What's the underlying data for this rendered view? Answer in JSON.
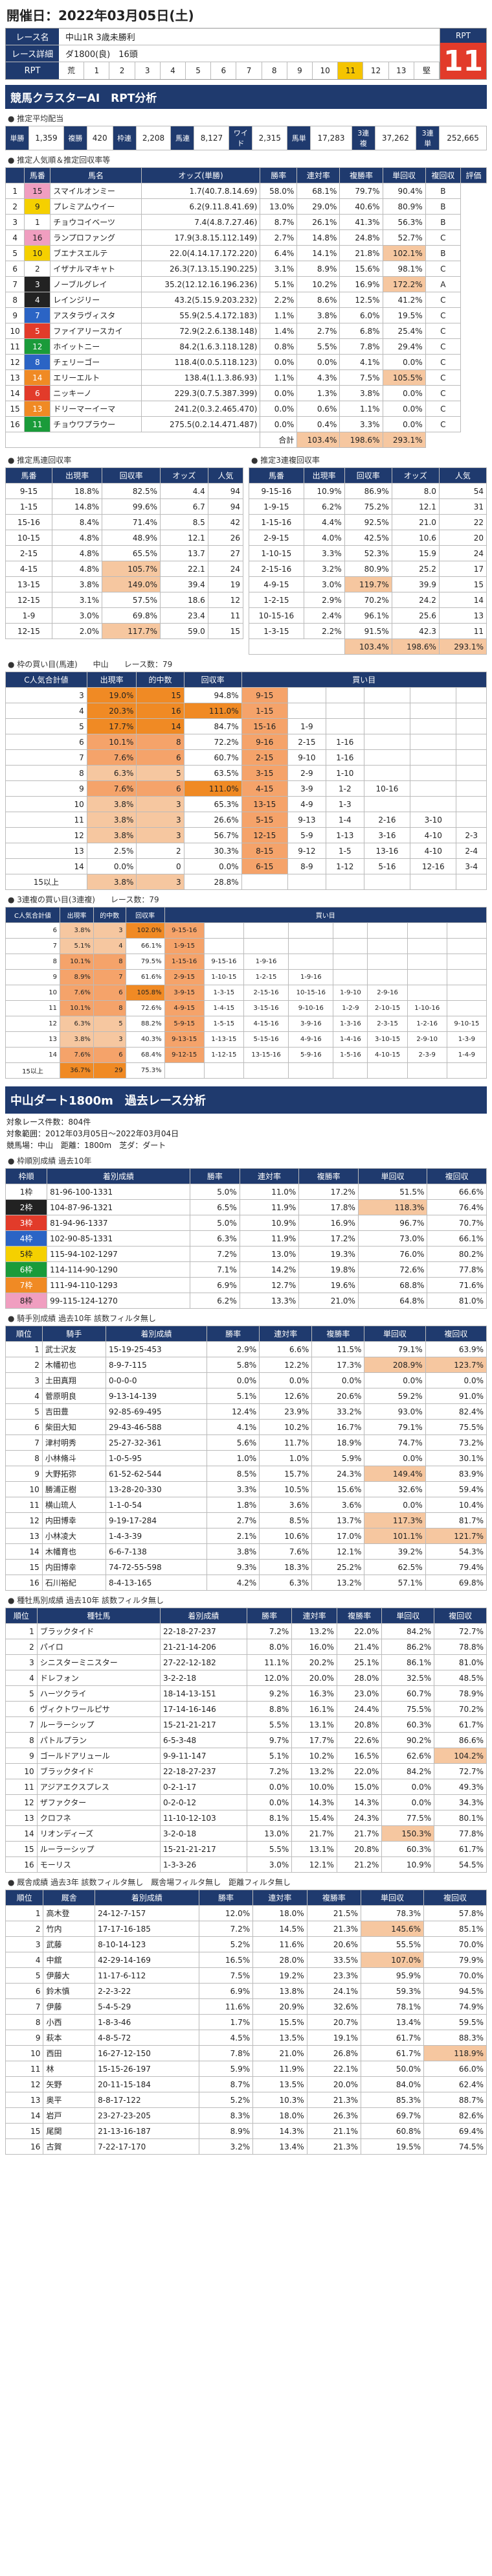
{
  "date": "開催日：2022年03月05日(土)",
  "race": {
    "name_label": "レース名",
    "name": "中山1R 3歳未勝利",
    "detail_label": "レース詳細",
    "detail": "ダ1800(良)　16頭",
    "rpt_label": "RPT",
    "rpt_head": "RPT",
    "rpt_value": "11",
    "rpt_cells": [
      "荒",
      "1",
      "2",
      "3",
      "4",
      "5",
      "6",
      "7",
      "8",
      "9",
      "10",
      "11",
      "12",
      "13",
      "堅"
    ]
  },
  "pay": {
    "labels": [
      "単勝",
      "複勝",
      "枠連",
      "馬連",
      "ワイド",
      "馬単",
      "3連複",
      "3連単"
    ],
    "values": [
      "1,359",
      "420",
      "2,208",
      "8,127",
      "2,315",
      "17,283",
      "37,262",
      "252,665"
    ]
  },
  "band1": "競馬クラスターAI　RPT分析",
  "sub_avg": "● 推定平均配当",
  "sub_pop": "● 推定人気順＆推定回収率等",
  "pop_head": [
    "馬番",
    "馬名",
    "オッズ(単勝)",
    "勝率",
    "連対率",
    "複勝率",
    "単回収",
    "複回収",
    "評価"
  ],
  "pop": [
    [
      "1",
      "15",
      "スマイルオンミー",
      "1.7(40.7.8.14.69)",
      "58.0%",
      "68.1%",
      "79.7%",
      "90.4%",
      "B"
    ],
    [
      "2",
      "9",
      "プレミアムウイー",
      "6.2(9.11.8.41.69)",
      "13.0%",
      "29.0%",
      "40.6%",
      "80.9%",
      "B"
    ],
    [
      "3",
      "1",
      "チョウコイベーツ",
      "7.4(4.8.7.27.46)",
      "8.7%",
      "26.1%",
      "41.3%",
      "56.3%",
      "B"
    ],
    [
      "4",
      "16",
      "ランプロファング",
      "17.9(3.8.15.112.149)",
      "2.7%",
      "14.8%",
      "24.8%",
      "52.7%",
      "C"
    ],
    [
      "5",
      "10",
      "ブエナスエルテ",
      "22.0(4.14.17.172.220)",
      "6.4%",
      "14.1%",
      "21.8%",
      "102.1%",
      "B"
    ],
    [
      "6",
      "2",
      "イザナルマキャト",
      "26.3(7.13.15.190.225)",
      "3.1%",
      "8.9%",
      "15.6%",
      "98.1%",
      "C"
    ],
    [
      "7",
      "3",
      "ノーブルグレイ",
      "35.2(12.12.16.196.236)",
      "5.1%",
      "10.2%",
      "16.9%",
      "172.2%",
      "A"
    ],
    [
      "8",
      "4",
      "レインジリー",
      "43.2(5.15.9.203.232)",
      "2.2%",
      "8.6%",
      "12.5%",
      "41.2%",
      "C"
    ],
    [
      "9",
      "7",
      "アスタラヴィスタ",
      "55.9(2.5.4.172.183)",
      "1.1%",
      "3.8%",
      "6.0%",
      "19.5%",
      "C"
    ],
    [
      "10",
      "5",
      "ファイアリースカイ",
      "72.9(2.2.6.138.148)",
      "1.4%",
      "2.7%",
      "6.8%",
      "25.4%",
      "C"
    ],
    [
      "11",
      "12",
      "ホイットニー",
      "84.2(1.6.3.118.128)",
      "0.8%",
      "5.5%",
      "7.8%",
      "29.4%",
      "C"
    ],
    [
      "12",
      "8",
      "チェリーゴー",
      "118.4(0.0.5.118.123)",
      "0.0%",
      "0.0%",
      "4.1%",
      "0.0%",
      "C"
    ],
    [
      "13",
      "14",
      "エリーエルト",
      "138.4(1.1.3.86.93)",
      "1.1%",
      "4.3%",
      "7.5%",
      "105.5%",
      "C"
    ],
    [
      "14",
      "6",
      "ニッキーノ",
      "229.3(0.7.5.387.399)",
      "0.0%",
      "1.3%",
      "3.8%",
      "0.0%",
      "C"
    ],
    [
      "15",
      "13",
      "ドリーマーイーマ",
      "241.2(0.3.2.465.470)",
      "0.0%",
      "0.6%",
      "1.1%",
      "0.0%",
      "C"
    ],
    [
      "16",
      "11",
      "チョウワプラウー",
      "275.5(0.2.14.471.487)",
      "0.0%",
      "0.4%",
      "3.3%",
      "0.0%",
      "C"
    ]
  ],
  "pop_total": [
    "合計",
    "103.4%",
    "198.6%",
    "293.1%"
  ],
  "sub_umaren": "● 推定馬連回収率",
  "sub_3ren": "● 推定3連複回収率",
  "umaren_head": [
    "馬番",
    "出現率",
    "回収率",
    "オッズ",
    "人気"
  ],
  "umaren": [
    [
      "9-15",
      "18.8%",
      "82.5%",
      "4.4",
      "94"
    ],
    [
      "1-15",
      "14.8%",
      "99.6%",
      "6.7",
      "94"
    ],
    [
      "15-16",
      "8.4%",
      "71.4%",
      "8.5",
      "42"
    ],
    [
      "10-15",
      "4.8%",
      "48.9%",
      "12.1",
      "26"
    ],
    [
      "2-15",
      "4.8%",
      "65.5%",
      "13.7",
      "27"
    ],
    [
      "4-15",
      "4.8%",
      "105.7%",
      "22.1",
      "24"
    ],
    [
      "13-15",
      "3.8%",
      "149.0%",
      "39.4",
      "19"
    ],
    [
      "12-15",
      "3.1%",
      "57.5%",
      "18.6",
      "12"
    ],
    [
      "1-9",
      "3.0%",
      "69.8%",
      "23.4",
      "11"
    ],
    [
      "12-15",
      "2.0%",
      "117.7%",
      "59.0",
      "15"
    ]
  ],
  "sanren_head": [
    "馬番",
    "出現率",
    "回収率",
    "オッズ",
    "人気"
  ],
  "sanren": [
    [
      "9-15-16",
      "10.9%",
      "86.9%",
      "8.0",
      "54"
    ],
    [
      "1-9-15",
      "6.2%",
      "75.2%",
      "12.1",
      "31"
    ],
    [
      "1-15-16",
      "4.4%",
      "92.5%",
      "21.0",
      "22"
    ],
    [
      "2-9-15",
      "4.0%",
      "42.5%",
      "10.6",
      "20"
    ],
    [
      "1-10-15",
      "3.3%",
      "52.3%",
      "15.9",
      "24"
    ],
    [
      "2-15-16",
      "3.2%",
      "80.9%",
      "25.2",
      "17"
    ],
    [
      "4-9-15",
      "3.0%",
      "119.7%",
      "39.9",
      "15"
    ],
    [
      "1-2-15",
      "2.9%",
      "70.2%",
      "24.2",
      "14"
    ],
    [
      "10-15-16",
      "2.4%",
      "96.1%",
      "25.6",
      "13"
    ],
    [
      "1-3-15",
      "2.2%",
      "91.5%",
      "42.3",
      "11"
    ]
  ],
  "sanren_total": [
    "",
    "103.4%",
    "198.6%",
    "293.1%"
  ],
  "sub_waku": "● 枠の買い目(馬連)　　中山　　レース数：79",
  "waku_head": [
    "C人気合計値",
    "出現率",
    "的中数",
    "回収率",
    "買い目"
  ],
  "waku": [
    [
      "3",
      "19.0%",
      "15",
      "94.8%",
      "9-15"
    ],
    [
      "4",
      "20.3%",
      "16",
      "111.0%",
      "1-15"
    ],
    [
      "5",
      "17.7%",
      "14",
      "84.7%",
      "15-16",
      "1-9"
    ],
    [
      "6",
      "10.1%",
      "8",
      "72.2%",
      "9-16",
      "2-15",
      "1-16"
    ],
    [
      "7",
      "7.6%",
      "6",
      "60.7%",
      "2-15",
      "9-10",
      "1-16"
    ],
    [
      "8",
      "6.3%",
      "5",
      "63.5%",
      "3-15",
      "2-9",
      "1-10"
    ],
    [
      "9",
      "7.6%",
      "6",
      "111.0%",
      "4-15",
      "3-9",
      "1-2",
      "10-16"
    ],
    [
      "10",
      "3.8%",
      "3",
      "65.3%",
      "13-15",
      "4-9",
      "1-3"
    ],
    [
      "11",
      "3.8%",
      "3",
      "26.6%",
      "5-15",
      "9-13",
      "1-4",
      "2-16",
      "3-10"
    ],
    [
      "12",
      "3.8%",
      "3",
      "56.7%",
      "12-15",
      "5-9",
      "1-13",
      "3-16",
      "4-10",
      "2-3"
    ],
    [
      "13",
      "2.5%",
      "2",
      "30.3%",
      "8-15",
      "9-12",
      "1-5",
      "13-16",
      "4-10",
      "2-4"
    ],
    [
      "14",
      "0.0%",
      "0",
      "0.0%",
      "6-15",
      "8-9",
      "1-12",
      "5-16",
      "12-16",
      "3-4"
    ],
    [
      "15以上",
      "3.8%",
      "3",
      "28.8%"
    ]
  ],
  "sub_3": "● 3連複の買い目(3連複)　　レース数：79",
  "three_head": [
    "C人気合計値",
    "出現率",
    "的中数",
    "回収率",
    "買い目"
  ],
  "three": [
    [
      "6",
      "3.8%",
      "3",
      "102.0%",
      "9-15-16"
    ],
    [
      "7",
      "5.1%",
      "4",
      "66.1%",
      "1-9-15"
    ],
    [
      "8",
      "10.1%",
      "8",
      "79.5%",
      "1-15-16",
      "9-15-16",
      "1-9-16"
    ],
    [
      "9",
      "8.9%",
      "7",
      "61.6%",
      "2-9-15",
      "1-10-15",
      "1-2-15",
      "1-9-16"
    ],
    [
      "10",
      "7.6%",
      "6",
      "105.8%",
      "3-9-15",
      "1-3-15",
      "2-15-16",
      "10-15-16",
      "1-9-10",
      "2-9-16"
    ],
    [
      "11",
      "10.1%",
      "8",
      "72.6%",
      "4-9-15",
      "1-4-15",
      "3-15-16",
      "9-10-16",
      "1-2-9",
      "2-10-15",
      "1-10-16"
    ],
    [
      "12",
      "6.3%",
      "5",
      "88.2%",
      "5-9-15",
      "1-5-15",
      "4-15-16",
      "3-9-16",
      "1-3-16",
      "2-3-15",
      "1-2-16",
      "9-10-15"
    ],
    [
      "13",
      "3.8%",
      "3",
      "40.3%",
      "9-13-15",
      "1-13-15",
      "5-15-16",
      "4-9-16",
      "1-4-16",
      "3-10-15",
      "2-9-10",
      "1-3-9"
    ],
    [
      "14",
      "7.6%",
      "6",
      "68.4%",
      "9-12-15",
      "1-12-15",
      "13-15-16",
      "5-9-16",
      "1-5-16",
      "4-10-15",
      "2-3-9",
      "1-4-9"
    ],
    [
      "15以上",
      "36.7%",
      "29",
      "75.3%"
    ]
  ],
  "big_band": "中山ダート1800m　過去レース分析",
  "meta": [
    "対象レース件数：804件",
    "対象範囲：2012年03月05日〜2022年03月04日",
    "競馬場：中山　距離：1800m　芝ダ：ダート"
  ],
  "sub_wk": "● 枠順別成績 過去10年",
  "wk_head": [
    "枠順",
    "着別成績",
    "勝率",
    "連対率",
    "複勝率",
    "単回収",
    "複回収"
  ],
  "wk": [
    [
      "1枠",
      "81-96-100-1331",
      "5.0%",
      "11.0%",
      "17.2%",
      "51.5%",
      "66.6%"
    ],
    [
      "2枠",
      "104-87-96-1321",
      "6.5%",
      "11.9%",
      "17.8%",
      "118.3%",
      "76.4%"
    ],
    [
      "3枠",
      "81-94-96-1337",
      "5.0%",
      "10.9%",
      "16.9%",
      "96.7%",
      "70.7%"
    ],
    [
      "4枠",
      "102-90-85-1331",
      "6.3%",
      "11.9%",
      "17.2%",
      "73.0%",
      "66.1%"
    ],
    [
      "5枠",
      "115-94-102-1297",
      "7.2%",
      "13.0%",
      "19.3%",
      "76.0%",
      "80.2%"
    ],
    [
      "6枠",
      "114-114-90-1290",
      "7.1%",
      "14.2%",
      "19.8%",
      "72.6%",
      "77.8%"
    ],
    [
      "7枠",
      "111-94-110-1293",
      "6.9%",
      "12.7%",
      "19.6%",
      "68.8%",
      "71.6%"
    ],
    [
      "8枠",
      "99-115-124-1270",
      "6.2%",
      "13.3%",
      "21.0%",
      "64.8%",
      "81.0%"
    ]
  ],
  "sub_j": "● 騎手別成績 過去10年 該数フィルタ無し",
  "j_head": [
    "順位",
    "騎手",
    "着別成績",
    "勝率",
    "連対率",
    "複勝率",
    "単回収",
    "複回収"
  ],
  "jockey": [
    [
      "1",
      "武士沢友",
      "15-19-25-453",
      "2.9%",
      "6.6%",
      "11.5%",
      "79.1%",
      "63.9%"
    ],
    [
      "2",
      "木幡初也",
      "8-9-7-115",
      "5.8%",
      "12.2%",
      "17.3%",
      "208.9%",
      "123.7%"
    ],
    [
      "3",
      "土田真翔",
      "0-0-0-0",
      "0.0%",
      "0.0%",
      "0.0%",
      "0.0%",
      "0.0%"
    ],
    [
      "4",
      "菅原明良",
      "9-13-14-139",
      "5.1%",
      "12.6%",
      "20.6%",
      "59.2%",
      "91.0%"
    ],
    [
      "5",
      "吉田豊",
      "92-85-69-495",
      "12.4%",
      "23.9%",
      "33.2%",
      "93.0%",
      "82.4%"
    ],
    [
      "6",
      "柴田大知",
      "29-43-46-588",
      "4.1%",
      "10.2%",
      "16.7%",
      "79.1%",
      "75.5%"
    ],
    [
      "7",
      "津村明秀",
      "25-27-32-361",
      "5.6%",
      "11.7%",
      "18.9%",
      "74.7%",
      "73.2%"
    ],
    [
      "8",
      "小林脩斗",
      "1-0-5-95",
      "1.0%",
      "1.0%",
      "5.9%",
      "0.0%",
      "30.1%"
    ],
    [
      "9",
      "大野拓弥",
      "61-52-62-544",
      "8.5%",
      "15.7%",
      "24.3%",
      "149.4%",
      "83.9%"
    ],
    [
      "10",
      "勝浦正樹",
      "13-28-20-330",
      "3.3%",
      "10.5%",
      "15.6%",
      "32.6%",
      "59.4%"
    ],
    [
      "11",
      "横山琉人",
      "1-1-0-54",
      "1.8%",
      "3.6%",
      "3.6%",
      "0.0%",
      "10.4%"
    ],
    [
      "12",
      "内田博幸",
      "9-19-17-284",
      "2.7%",
      "8.5%",
      "13.7%",
      "117.3%",
      "81.7%"
    ],
    [
      "13",
      "小林凌大",
      "1-4-3-39",
      "2.1%",
      "10.6%",
      "17.0%",
      "101.1%",
      "121.7%"
    ],
    [
      "14",
      "木幡育也",
      "6-6-7-138",
      "3.8%",
      "7.6%",
      "12.1%",
      "39.2%",
      "54.3%"
    ],
    [
      "15",
      "内田博幸",
      "74-72-55-598",
      "9.3%",
      "18.3%",
      "25.2%",
      "62.5%",
      "79.4%"
    ],
    [
      "16",
      "石川裕紀",
      "8-4-13-165",
      "4.2%",
      "6.3%",
      "13.2%",
      "57.1%",
      "69.8%"
    ]
  ],
  "sub_s": "● 種牡馬別成績 過去10年 該数フィルタ無し",
  "s_head": [
    "順位",
    "種牡馬",
    "着別成績",
    "勝率",
    "連対率",
    "複勝率",
    "単回収",
    "複回収"
  ],
  "sire": [
    [
      "1",
      "ブラックタイド",
      "22-18-27-237",
      "7.2%",
      "13.2%",
      "22.0%",
      "84.2%",
      "72.7%"
    ],
    [
      "2",
      "パイロ",
      "21-21-14-206",
      "8.0%",
      "16.0%",
      "21.4%",
      "86.2%",
      "78.8%"
    ],
    [
      "3",
      "シニスターミニスター",
      "27-22-12-182",
      "11.1%",
      "20.2%",
      "25.1%",
      "86.1%",
      "81.0%"
    ],
    [
      "4",
      "ドレフォン",
      "3-2-2-18",
      "12.0%",
      "20.0%",
      "28.0%",
      "32.5%",
      "48.5%"
    ],
    [
      "5",
      "ハーツクライ",
      "18-14-13-151",
      "9.2%",
      "16.3%",
      "23.0%",
      "60.7%",
      "78.9%"
    ],
    [
      "6",
      "ヴィクトワールピサ",
      "17-14-16-146",
      "8.8%",
      "16.1%",
      "24.4%",
      "75.5%",
      "70.2%"
    ],
    [
      "7",
      "ルーラーシップ",
      "15-21-21-217",
      "5.5%",
      "13.1%",
      "20.8%",
      "60.3%",
      "61.7%"
    ],
    [
      "8",
      "パトルプラン",
      "6-5-3-48",
      "9.7%",
      "17.7%",
      "22.6%",
      "90.2%",
      "86.6%"
    ],
    [
      "9",
      "ゴールドアリュール",
      "9-9-11-147",
      "5.1%",
      "10.2%",
      "16.5%",
      "62.6%",
      "104.2%"
    ],
    [
      "10",
      "ブラックタイド",
      "22-18-27-237",
      "7.2%",
      "13.2%",
      "22.0%",
      "84.2%",
      "72.7%"
    ],
    [
      "11",
      "アジアエクスプレス",
      "0-2-1-17",
      "0.0%",
      "10.0%",
      "15.0%",
      "0.0%",
      "49.3%"
    ],
    [
      "12",
      "ザファクター",
      "0-2-0-12",
      "0.0%",
      "14.3%",
      "14.3%",
      "0.0%",
      "34.3%"
    ],
    [
      "13",
      "クロフネ",
      "11-10-12-103",
      "8.1%",
      "15.4%",
      "24.3%",
      "77.5%",
      "80.1%"
    ],
    [
      "14",
      "リオンディーズ",
      "3-2-0-18",
      "13.0%",
      "21.7%",
      "21.7%",
      "150.3%",
      "77.8%"
    ],
    [
      "15",
      "ルーラーシップ",
      "15-21-21-217",
      "5.5%",
      "13.1%",
      "20.8%",
      "60.3%",
      "61.7%"
    ],
    [
      "16",
      "モーリス",
      "1-3-3-26",
      "3.0%",
      "12.1%",
      "21.2%",
      "10.9%",
      "54.5%"
    ]
  ],
  "sub_t": "● 厩舎成績 過去3年 該数フィルタ無し　厩舎場フィルタ無し　距離フィルタ無し",
  "t_head": [
    "順位",
    "厩舎",
    "着別成績",
    "勝率",
    "連対率",
    "複勝率",
    "単回収",
    "複回収"
  ],
  "trainer": [
    [
      "1",
      "高木登",
      "24-12-7-157",
      "12.0%",
      "18.0%",
      "21.5%",
      "78.3%",
      "57.8%"
    ],
    [
      "2",
      "竹内",
      "17-17-16-185",
      "7.2%",
      "14.5%",
      "21.3%",
      "145.6%",
      "85.1%"
    ],
    [
      "3",
      "武藤",
      "8-10-14-123",
      "5.2%",
      "11.6%",
      "20.6%",
      "55.5%",
      "70.0%"
    ],
    [
      "4",
      "中舘",
      "42-29-14-169",
      "16.5%",
      "28.0%",
      "33.5%",
      "107.0%",
      "79.9%"
    ],
    [
      "5",
      "伊藤大",
      "11-17-6-112",
      "7.5%",
      "19.2%",
      "23.3%",
      "95.9%",
      "70.0%"
    ],
    [
      "6",
      "鈴木慎",
      "2-2-3-22",
      "6.9%",
      "13.8%",
      "24.1%",
      "59.3%",
      "94.5%"
    ],
    [
      "7",
      "伊藤",
      "5-4-5-29",
      "11.6%",
      "20.9%",
      "32.6%",
      "78.1%",
      "74.9%"
    ],
    [
      "8",
      "小西",
      "1-8-3-46",
      "1.7%",
      "15.5%",
      "20.7%",
      "13.4%",
      "59.5%"
    ],
    [
      "9",
      "萩本",
      "4-8-5-72",
      "4.5%",
      "13.5%",
      "19.1%",
      "61.7%",
      "88.3%"
    ],
    [
      "10",
      "西田",
      "16-27-12-150",
      "7.8%",
      "21.0%",
      "26.8%",
      "61.7%",
      "118.9%"
    ],
    [
      "11",
      "林",
      "15-15-26-197",
      "5.9%",
      "11.9%",
      "22.1%",
      "50.0%",
      "66.0%"
    ],
    [
      "12",
      "矢野",
      "20-11-15-184",
      "8.7%",
      "13.5%",
      "20.0%",
      "84.0%",
      "62.4%"
    ],
    [
      "13",
      "奥平",
      "8-8-17-122",
      "5.2%",
      "10.3%",
      "21.3%",
      "85.3%",
      "88.7%"
    ],
    [
      "14",
      "岩戸",
      "23-27-23-205",
      "8.3%",
      "18.0%",
      "26.3%",
      "69.7%",
      "82.6%"
    ],
    [
      "15",
      "尾関",
      "21-13-16-187",
      "8.9%",
      "14.3%",
      "21.1%",
      "60.8%",
      "69.4%"
    ],
    [
      "16",
      "古賀",
      "7-22-17-170",
      "3.2%",
      "13.4%",
      "21.3%",
      "19.5%",
      "74.5%"
    ]
  ]
}
